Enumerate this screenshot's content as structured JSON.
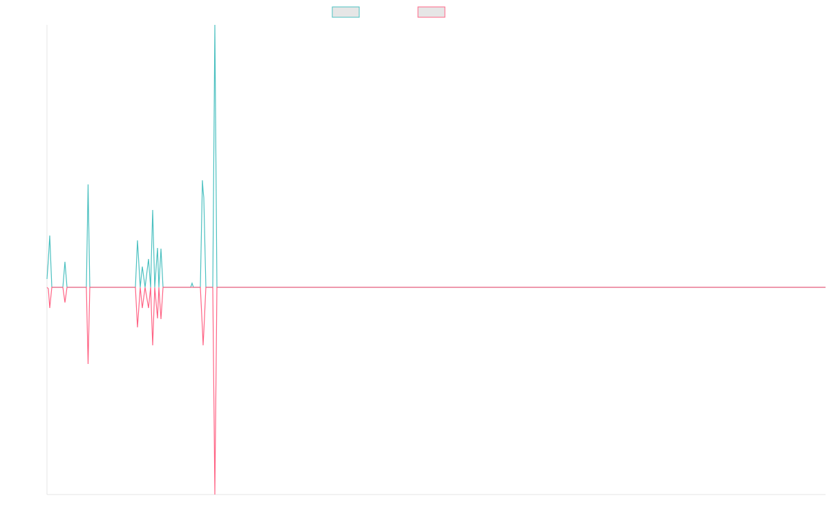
{
  "chart_data": {
    "type": "line",
    "x": [
      0,
      2,
      4,
      7,
      23,
      26,
      29,
      57,
      59.5,
      62,
      128,
      131,
      135,
      138,
      142,
      147,
      150,
      153,
      156,
      160,
      162,
      165,
      168,
      208,
      210,
      212,
      222,
      225,
      226,
      227,
      230,
      240,
      243,
      246,
      1127
    ],
    "series": [
      {
        "color": "#4bc0c0",
        "values": [
          12,
          40,
          75,
          0,
          0,
          37,
          0,
          0,
          149,
          0,
          0,
          68,
          0,
          30,
          0,
          41,
          0,
          112,
          0,
          57,
          0,
          56,
          0,
          0,
          6,
          0,
          0,
          155,
          140,
          130,
          0,
          0,
          380,
          0,
          0
        ]
      },
      {
        "color": "#ff6384",
        "values": [
          0,
          -2,
          -30,
          0,
          0,
          -22,
          0,
          0,
          -111,
          0,
          0,
          -58,
          0,
          -30,
          0,
          -30,
          0,
          -84,
          0,
          -45,
          0,
          -46,
          0,
          0,
          0,
          0,
          0,
          -60,
          -84,
          -65,
          0,
          0,
          -300,
          0,
          0
        ]
      }
    ],
    "xlim": [
      0,
      1127
    ],
    "ylim": [
      -300,
      380
    ]
  }
}
